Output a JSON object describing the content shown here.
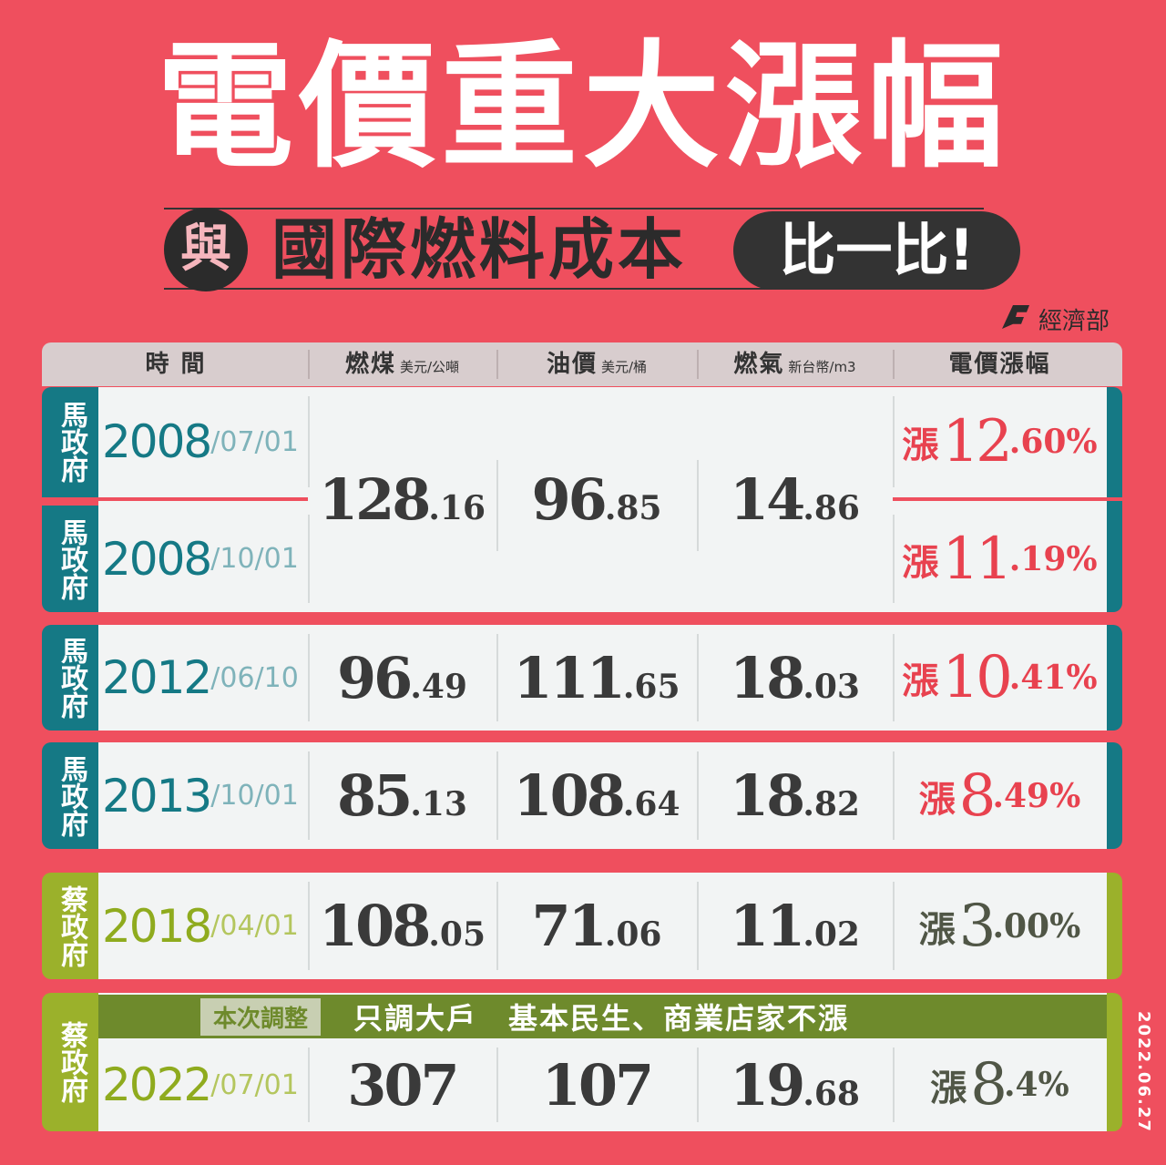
{
  "header": {
    "title": "電價重大漲幅",
    "subtitle_prefix": "與",
    "subtitle": "國際燃料成本",
    "subtitle_tag": "比一比!",
    "ministry": "經濟部"
  },
  "table": {
    "columns": [
      {
        "label": "時 間"
      },
      {
        "label": "燃煤",
        "unit": "美元/公噸"
      },
      {
        "label": "油價",
        "unit": "美元/桶"
      },
      {
        "label": "燃氣",
        "unit": "新台幣/m3"
      },
      {
        "label": "電價漲幅"
      }
    ],
    "rows": [
      {
        "government": "馬政府",
        "year": "2008",
        "date_rest": "/07/01",
        "coal": [
          "128",
          ".16"
        ],
        "oil": [
          "96",
          ".85"
        ],
        "gas": [
          "14",
          ".86"
        ],
        "rise": [
          "漲",
          "12",
          ".60%"
        ]
      },
      {
        "government": "馬政府",
        "year": "2008",
        "date_rest": "/10/01",
        "rise": [
          "漲",
          "11",
          ".19%"
        ]
      },
      {
        "government": "馬政府",
        "year": "2012",
        "date_rest": "/06/10",
        "coal": [
          "96",
          ".49"
        ],
        "oil": [
          "111",
          ".65"
        ],
        "gas": [
          "18",
          ".03"
        ],
        "rise": [
          "漲",
          "10",
          ".41%"
        ]
      },
      {
        "government": "馬政府",
        "year": "2013",
        "date_rest": "/10/01",
        "coal": [
          "85",
          ".13"
        ],
        "oil": [
          "108",
          ".64"
        ],
        "gas": [
          "18",
          ".82"
        ],
        "rise": [
          "漲",
          "8",
          ".49%"
        ]
      },
      {
        "government": "蔡政府",
        "year": "2018",
        "date_rest": "/04/01",
        "coal": [
          "108",
          ".05"
        ],
        "oil": [
          "71",
          ".06"
        ],
        "gas": [
          "11",
          ".02"
        ],
        "rise": [
          "漲",
          "3",
          ".00%"
        ]
      },
      {
        "government": "蔡政府",
        "year": "2022",
        "date_rest": "/07/01",
        "coal": [
          "307",
          ""
        ],
        "oil": [
          "107",
          ""
        ],
        "gas": [
          "19",
          ".68"
        ],
        "rise": [
          "漲",
          "8",
          ".4%"
        ]
      }
    ],
    "note_tag": "本次調整",
    "note": "只調大戶　基本民生、商業店家不漲"
  },
  "date": "2022.06.27"
}
